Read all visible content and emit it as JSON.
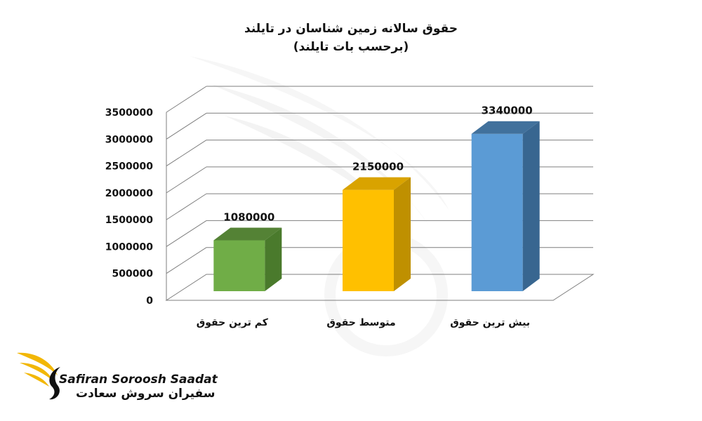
{
  "chart_data": {
    "type": "bar",
    "title": "حقوق سالانه زمین شناسان در تایلند",
    "subtitle": "(برحسب بات تایلند)",
    "categories": [
      "کم ترین حقوق",
      "متوسط حقوق",
      "بیش ترین حقوق"
    ],
    "values": [
      1080000,
      2150000,
      3340000
    ],
    "data_labels": [
      "1080000",
      "2150000",
      "3340000"
    ],
    "y_ticks": [
      "0",
      "500000",
      "1000000",
      "1500000",
      "2000000",
      "2500000",
      "3000000",
      "3500000"
    ],
    "ylim": [
      0,
      3500000
    ],
    "grid": true,
    "style": "3d-column",
    "colors": {
      "front": [
        "#70ad47",
        "#ffc000",
        "#5b9bd5"
      ],
      "top": [
        "#548235",
        "#d9a300",
        "#41719c"
      ],
      "side": [
        "#4a7a2c",
        "#bf9000",
        "#386690"
      ],
      "grid": "#7f7f7f"
    }
  },
  "logo": {
    "name_en": "Safiran Soroosh Saadat",
    "name_fa": "سفیران سروش سعادت",
    "colors": {
      "wing": "#f2b705",
      "text": "#111111"
    }
  }
}
